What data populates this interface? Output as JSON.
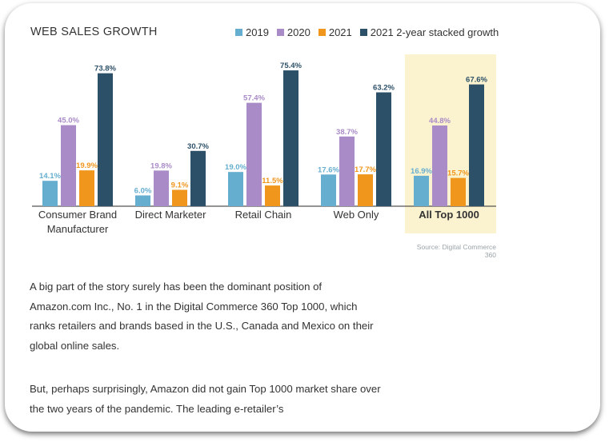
{
  "chart_data": {
    "type": "bar",
    "title": "WEB SALES GROWTH",
    "categories": [
      "Consumer Brand Manufacturer",
      "Direct Marketer",
      "Retail Chain",
      "Web Only",
      "All Top 1000"
    ],
    "category_lines": [
      [
        "Consumer Brand",
        "Manufacturer"
      ],
      [
        "Direct Marketer"
      ],
      [
        "Retail Chain"
      ],
      [
        "Web Only"
      ],
      [
        "All Top 1000"
      ]
    ],
    "highlight_category": "All Top 1000",
    "series": [
      {
        "name": "2019",
        "color": "#66aed0",
        "values": [
          14.1,
          6.0,
          19.0,
          17.6,
          16.9
        ],
        "labels": [
          "14.1%",
          "6.0%",
          "19.0%",
          "17.6%",
          "16.9%"
        ]
      },
      {
        "name": "2020",
        "color": "#a98bc7",
        "values": [
          45.0,
          19.8,
          57.4,
          38.7,
          44.8
        ],
        "labels": [
          "45.0%",
          "19.8%",
          "57.4%",
          "38.7%",
          "44.8%"
        ]
      },
      {
        "name": "2021",
        "color": "#f0961c",
        "values": [
          19.9,
          9.1,
          11.5,
          17.7,
          15.7
        ],
        "labels": [
          "19.9%",
          "9.1%",
          "11.5%",
          "17.7%",
          "15.7%"
        ]
      },
      {
        "name": "2021 2-year stacked growth",
        "color": "#2c5068",
        "values": [
          73.8,
          30.7,
          75.4,
          63.2,
          67.6
        ],
        "labels": [
          "73.8%",
          "30.7%",
          "75.4%",
          "63.2%",
          "67.6%"
        ]
      }
    ],
    "ylim": [
      0,
      80
    ],
    "grid": false,
    "legend_position": "top-right",
    "source": "Source: Digital Commerce 360"
  },
  "article": {
    "paragraphs": [
      "A big part of the story surely has been the dominant position of Amazon.com Inc., No. 1 in the Digital Commerce 360 Top 1000, which ranks retailers and brands based in the U.S., Canada and Mexico on their global online sales.",
      "But, perhaps surprisingly, Amazon did not gain Top 1000 market share over the two years of the pandemic. The leading e-retailer’s"
    ]
  },
  "colors": {
    "highlight_bg": "#fbf3cf",
    "text": "#333333",
    "axis": "#555555"
  }
}
